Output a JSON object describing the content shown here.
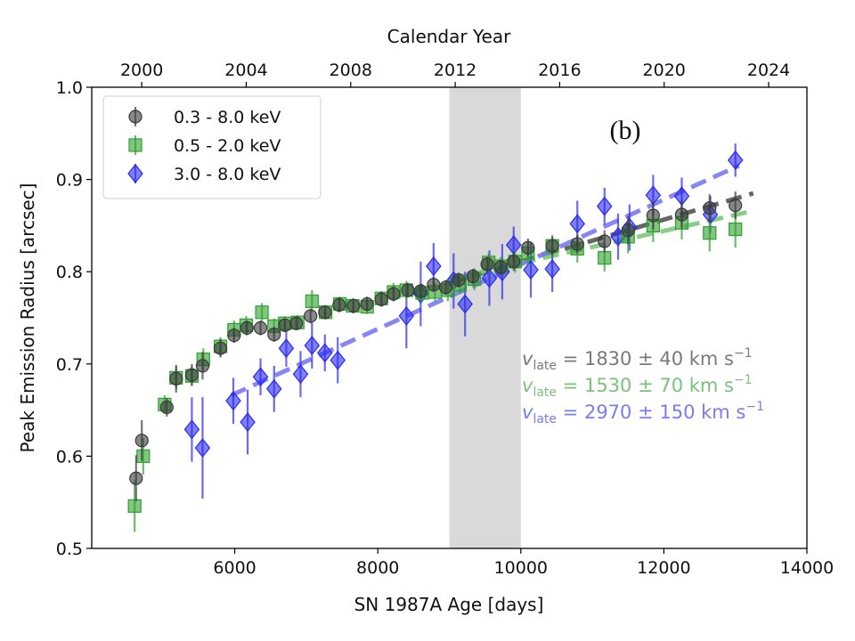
{
  "chart_data": {
    "type": "scatter",
    "xlabel": "SN 1987A Age [days]",
    "ylabel": "Peak Emission Radius [arcsec]",
    "top_xlabel": "Calendar Year",
    "xlim": [
      4000,
      14000
    ],
    "ylim": [
      0.5,
      1.0
    ],
    "x_ticks": [
      6000,
      8000,
      10000,
      12000,
      14000
    ],
    "x_tick_labels": [
      "6000",
      "8000",
      "10000",
      "12000",
      "14000"
    ],
    "y_ticks": [
      0.5,
      0.6,
      0.7,
      0.8,
      0.9,
      1.0
    ],
    "y_tick_labels": [
      "0.5",
      "0.6",
      "0.7",
      "0.8",
      "0.9",
      "1.0"
    ],
    "top_ticks_age": [
      4699,
      6160,
      7621,
      9082,
      10543,
      12004,
      13465
    ],
    "top_tick_labels": [
      "2000",
      "2004",
      "2008",
      "2012",
      "2016",
      "2020",
      "2024"
    ],
    "shaded_region": [
      9000,
      10000
    ],
    "panel_label": "(b)",
    "legend_position": "top-left",
    "series": [
      {
        "name": "0.3 - 8.0 keV",
        "marker": "circle",
        "color": "#3a3a3a",
        "fit_color": "#555555",
        "fit": [
          [
            9000,
            0.788
          ],
          [
            13250,
            0.885
          ]
        ],
        "points": [
          [
            4620,
            0.576,
            0.025
          ],
          [
            4700,
            0.617,
            0.022
          ],
          [
            5050,
            0.653,
            0.01
          ],
          [
            5180,
            0.684,
            0.015
          ],
          [
            5400,
            0.688,
            0.012
          ],
          [
            5550,
            0.698,
            0.015
          ],
          [
            5800,
            0.717,
            0.01
          ],
          [
            5990,
            0.731,
            0.008
          ],
          [
            6170,
            0.739,
            0.008
          ],
          [
            6360,
            0.739,
            0.008
          ],
          [
            6550,
            0.732,
            0.008
          ],
          [
            6700,
            0.742,
            0.007
          ],
          [
            6860,
            0.744,
            0.007
          ],
          [
            7060,
            0.752,
            0.008
          ],
          [
            7260,
            0.756,
            0.007
          ],
          [
            7460,
            0.764,
            0.008
          ],
          [
            7660,
            0.763,
            0.008
          ],
          [
            7850,
            0.765,
            0.008
          ],
          [
            8050,
            0.77,
            0.008
          ],
          [
            8220,
            0.776,
            0.008
          ],
          [
            8420,
            0.78,
            0.008
          ],
          [
            8600,
            0.779,
            0.008
          ],
          [
            8780,
            0.786,
            0.008
          ],
          [
            8950,
            0.783,
            0.008
          ],
          [
            9130,
            0.791,
            0.008
          ],
          [
            9330,
            0.795,
            0.008
          ],
          [
            9530,
            0.808,
            0.008
          ],
          [
            9720,
            0.805,
            0.008
          ],
          [
            9900,
            0.811,
            0.01
          ],
          [
            10100,
            0.826,
            0.01
          ],
          [
            10440,
            0.828,
            0.01
          ],
          [
            10790,
            0.83,
            0.01
          ],
          [
            11170,
            0.833,
            0.012
          ],
          [
            11500,
            0.845,
            0.015
          ],
          [
            11850,
            0.861,
            0.015
          ],
          [
            12250,
            0.862,
            0.015
          ],
          [
            12640,
            0.869,
            0.015
          ],
          [
            13000,
            0.872,
            0.015
          ]
        ]
      },
      {
        "name": "0.5 - 2.0 keV",
        "marker": "square",
        "color": "#2ea02e",
        "fit_color": "#7ec87e",
        "fit": [
          [
            9000,
            0.792
          ],
          [
            13250,
            0.866
          ]
        ],
        "points": [
          [
            4600,
            0.546,
            0.028
          ],
          [
            4720,
            0.6,
            0.02
          ],
          [
            5020,
            0.656,
            0.01
          ],
          [
            5180,
            0.685,
            0.012
          ],
          [
            5400,
            0.687,
            0.01
          ],
          [
            5560,
            0.705,
            0.012
          ],
          [
            5800,
            0.719,
            0.01
          ],
          [
            5990,
            0.737,
            0.01
          ],
          [
            6160,
            0.742,
            0.01
          ],
          [
            6380,
            0.756,
            0.01
          ],
          [
            6550,
            0.741,
            0.008
          ],
          [
            6700,
            0.744,
            0.008
          ],
          [
            6880,
            0.745,
            0.008
          ],
          [
            7080,
            0.768,
            0.012
          ],
          [
            7270,
            0.756,
            0.008
          ],
          [
            7470,
            0.765,
            0.008
          ],
          [
            7650,
            0.763,
            0.008
          ],
          [
            7850,
            0.762,
            0.008
          ],
          [
            8050,
            0.771,
            0.008
          ],
          [
            8220,
            0.778,
            0.01
          ],
          [
            8400,
            0.78,
            0.01
          ],
          [
            8620,
            0.777,
            0.01
          ],
          [
            8800,
            0.778,
            0.01
          ],
          [
            8980,
            0.78,
            0.012
          ],
          [
            9150,
            0.786,
            0.01
          ],
          [
            9350,
            0.792,
            0.012
          ],
          [
            9550,
            0.81,
            0.01
          ],
          [
            9720,
            0.806,
            0.01
          ],
          [
            9920,
            0.811,
            0.012
          ],
          [
            10100,
            0.82,
            0.012
          ],
          [
            10440,
            0.828,
            0.012
          ],
          [
            10790,
            0.825,
            0.015
          ],
          [
            11170,
            0.815,
            0.015
          ],
          [
            11500,
            0.838,
            0.018
          ],
          [
            11850,
            0.85,
            0.018
          ],
          [
            12250,
            0.853,
            0.018
          ],
          [
            12640,
            0.842,
            0.02
          ],
          [
            13000,
            0.846,
            0.02
          ]
        ]
      },
      {
        "name": "3.0 - 8.0 keV",
        "marker": "diamond",
        "color": "#2b2bef",
        "fit_color": "#7b7bf2",
        "fit": [
          [
            5950,
            0.666
          ],
          [
            13050,
            0.915
          ]
        ],
        "points": [
          [
            5400,
            0.629,
            0.035
          ],
          [
            5550,
            0.609,
            0.055
          ],
          [
            5980,
            0.66,
            0.025
          ],
          [
            6180,
            0.637,
            0.035
          ],
          [
            6360,
            0.686,
            0.02
          ],
          [
            6550,
            0.673,
            0.025
          ],
          [
            6720,
            0.717,
            0.02
          ],
          [
            6920,
            0.689,
            0.025
          ],
          [
            7080,
            0.72,
            0.025
          ],
          [
            7260,
            0.712,
            0.02
          ],
          [
            7440,
            0.704,
            0.025
          ],
          [
            8400,
            0.752,
            0.035
          ],
          [
            8600,
            0.776,
            0.035
          ],
          [
            8780,
            0.806,
            0.025
          ],
          [
            9060,
            0.79,
            0.03
          ],
          [
            9220,
            0.765,
            0.035
          ],
          [
            9560,
            0.793,
            0.03
          ],
          [
            9740,
            0.8,
            0.03
          ],
          [
            9900,
            0.829,
            0.02
          ],
          [
            10140,
            0.802,
            0.03
          ],
          [
            10440,
            0.803,
            0.025
          ],
          [
            10790,
            0.852,
            0.025
          ],
          [
            11170,
            0.871,
            0.02
          ],
          [
            11360,
            0.838,
            0.025
          ],
          [
            11520,
            0.848,
            0.025
          ],
          [
            11850,
            0.883,
            0.022
          ],
          [
            12250,
            0.882,
            0.02
          ],
          [
            12650,
            0.862,
            0.02
          ],
          [
            13000,
            0.921,
            0.018
          ]
        ]
      }
    ],
    "annotations": [
      {
        "prefix": "v",
        "sub": "late",
        "text": " = 1830 ± 40 km s",
        "sup": "−1",
        "color": "#7a7a7a"
      },
      {
        "prefix": "v",
        "sub": "late",
        "text": " = 1530 ± 70 km s",
        "sup": "−1",
        "color": "#7ac17a"
      },
      {
        "prefix": "v",
        "sub": "late",
        "text": " = 2970 ± 150 km s",
        "sup": "−1",
        "color": "#7b7bf2"
      }
    ]
  }
}
